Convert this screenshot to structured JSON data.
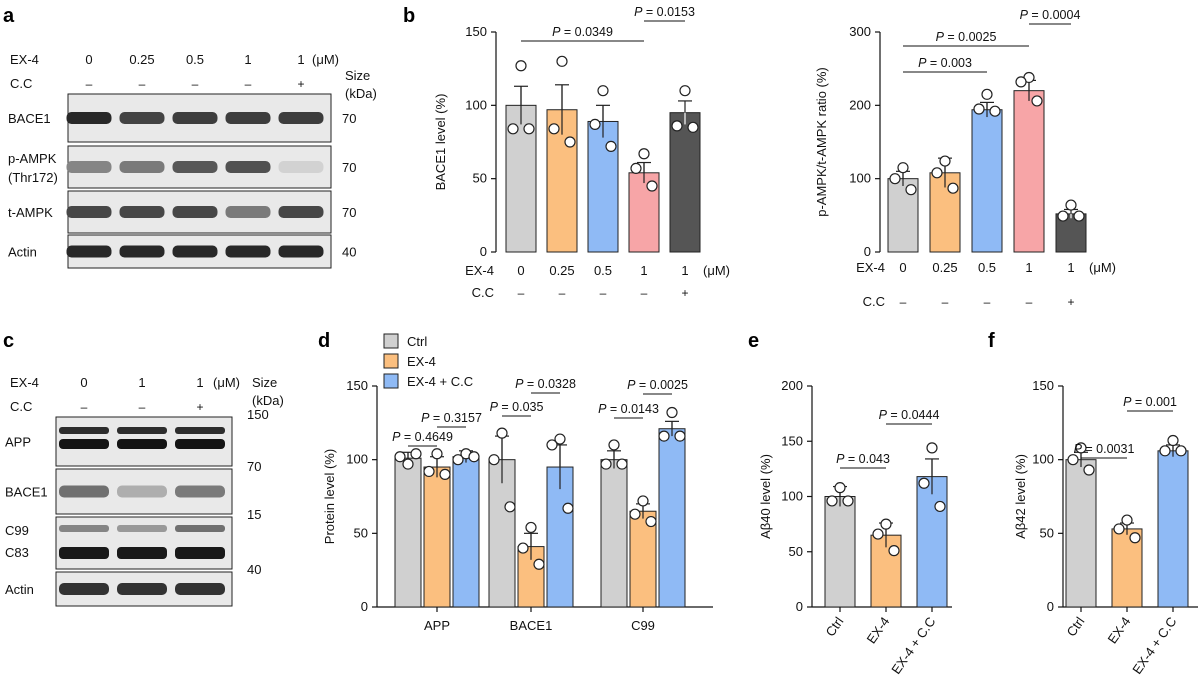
{
  "panels": {
    "a": {
      "label": "a",
      "treatment_labels": [
        "EX-4",
        "C.C"
      ],
      "ex4_values": [
        "0",
        "0.25",
        "0.5",
        "1",
        "1"
      ],
      "unit": "(μM)",
      "cc_values": [
        "–",
        "–",
        "–",
        "–",
        "+"
      ],
      "size_label": "Size",
      "size_unit": "(kDa)",
      "blots": [
        {
          "name": "BACE1",
          "name2": "",
          "kda": "70",
          "intensity": [
            0.95,
            0.82,
            0.85,
            0.85,
            0.85
          ]
        },
        {
          "name": "p-AMPK",
          "name2": "(Thr172)",
          "kda": "70",
          "intensity": [
            0.5,
            0.55,
            0.72,
            0.75,
            0.12
          ]
        },
        {
          "name": "t-AMPK",
          "name2": "",
          "kda": "70",
          "intensity": [
            0.8,
            0.8,
            0.8,
            0.55,
            0.8
          ]
        },
        {
          "name": "Actin",
          "name2": "",
          "kda": "40",
          "intensity": [
            0.95,
            0.95,
            0.95,
            0.95,
            0.95
          ]
        }
      ]
    },
    "b": {
      "label": "b"
    },
    "c": {
      "label": "c",
      "treatment_labels": [
        "EX-4",
        "C.C"
      ],
      "ex4_values": [
        "0",
        "1",
        "1"
      ],
      "unit": "(μM)",
      "cc_values": [
        "–",
        "–",
        "+"
      ],
      "size_label": "Size",
      "size_unit": "(kDa)",
      "blots": [
        {
          "name": "APP",
          "name2": "",
          "kda": "150",
          "intensity": [
            0.9,
            0.9,
            0.9
          ]
        },
        {
          "name": "BACE1",
          "name2": "",
          "kda": "70",
          "intensity": [
            0.6,
            0.3,
            0.55
          ]
        },
        {
          "name": "C99",
          "name2": "C83",
          "kda": "15",
          "intensity": [
            0.5,
            0.4,
            0.6
          ]
        },
        {
          "name": "Actin",
          "name2": "",
          "kda": "40",
          "intensity": [
            0.9,
            0.9,
            0.9
          ]
        }
      ]
    },
    "d": {
      "label": "d"
    },
    "e": {
      "label": "e"
    },
    "f": {
      "label": "f"
    }
  },
  "colors": {
    "gray": "#d0d0d0",
    "orange": "#fbbf7f",
    "blue": "#8fbaf5",
    "pink": "#f7a5a7",
    "dark": "#555555"
  },
  "chart_data": [
    {
      "id": "b1",
      "type": "bar",
      "ylabel": "BACE1 level (%)",
      "ylim": [
        0,
        150
      ],
      "yticks": [
        0,
        50,
        100,
        150
      ],
      "categories": [
        "0",
        "0.25",
        "0.5",
        "1",
        "1"
      ],
      "row_label": "EX-4",
      "unit": "(μM)",
      "cc_label": "C.C",
      "cc_values": [
        "–",
        "–",
        "–",
        "–",
        "+"
      ],
      "values": [
        100,
        97,
        89,
        54,
        95
      ],
      "errors": [
        13,
        17,
        11,
        7,
        8
      ],
      "points": [
        [
          127,
          84,
          84
        ],
        [
          130,
          84,
          75
        ],
        [
          110,
          87,
          72
        ],
        [
          67,
          57,
          45
        ],
        [
          110,
          86,
          85
        ]
      ],
      "color_keys": [
        "gray",
        "orange",
        "blue",
        "pink",
        "dark"
      ],
      "comparisons": [
        {
          "from": 0,
          "to": 3,
          "text": "0.0349",
          "level": 0
        },
        {
          "from": 3,
          "to": 4,
          "text": "0.0153",
          "level": 1
        }
      ]
    },
    {
      "id": "b2",
      "type": "bar",
      "ylabel": "p-AMPK/t-AMPK ratio (%)",
      "ylim": [
        0,
        300
      ],
      "yticks": [
        0,
        100,
        200,
        300
      ],
      "categories": [
        "0",
        "0.25",
        "0.5",
        "1",
        "1"
      ],
      "row_label": "EX-4",
      "unit": "(μM)",
      "cc_label": "C.C",
      "cc_values": [
        "–",
        "–",
        "–",
        "–",
        "+"
      ],
      "values": [
        100,
        108,
        194,
        220,
        52
      ],
      "errors": [
        10,
        20,
        10,
        14,
        6
      ],
      "points": [
        [
          115,
          100,
          85
        ],
        [
          124,
          108,
          87
        ],
        [
          215,
          195,
          192
        ],
        [
          238,
          232,
          206
        ],
        [
          64,
          49,
          49
        ]
      ],
      "color_keys": [
        "gray",
        "orange",
        "blue",
        "pink",
        "dark"
      ],
      "comparisons": [
        {
          "from": 0,
          "to": 2,
          "text": "0.003",
          "level": 0
        },
        {
          "from": 0,
          "to": 3,
          "text": "0.0025",
          "level": 1
        },
        {
          "from": 3,
          "to": 4,
          "text": "0.0004",
          "level": 2
        }
      ]
    },
    {
      "id": "d",
      "type": "bar",
      "ylabel": "Protein level (%)",
      "ylim": [
        0,
        150
      ],
      "yticks": [
        0,
        50,
        100,
        150
      ],
      "categories": [
        "APP",
        "BACE1",
        "C99"
      ],
      "series": [
        {
          "name": "Ctrl",
          "color_key": "gray",
          "values": [
            101,
            100,
            100
          ],
          "errors": [
            4,
            16,
            6
          ],
          "points": [
            [
              97,
              102,
              104
            ],
            [
              118,
              100,
              68
            ],
            [
              110,
              97,
              97
            ]
          ]
        },
        {
          "name": "EX-4",
          "color_key": "orange",
          "values": [
            95,
            41,
            65
          ],
          "errors": [
            7,
            9,
            5
          ],
          "points": [
            [
              104,
              92,
              90
            ],
            [
              54,
              40,
              29
            ],
            [
              72,
              63,
              58
            ]
          ]
        },
        {
          "name": "EX-4 + C.C",
          "color_key": "blue",
          "values": [
            102,
            95,
            121
          ],
          "errors": [
            4,
            15,
            5
          ],
          "points": [
            [
              104,
              100,
              102
            ],
            [
              114,
              110,
              67
            ],
            [
              132,
              116,
              116
            ]
          ]
        }
      ],
      "comparisons": [
        {
          "cat": 0,
          "from": 0,
          "to": 1,
          "text": "0.4649",
          "level": 0
        },
        {
          "cat": 0,
          "from": 1,
          "to": 2,
          "text": "0.3157",
          "level": 1
        },
        {
          "cat": 1,
          "from": 0,
          "to": 1,
          "text": "0.035",
          "level": 0
        },
        {
          "cat": 1,
          "from": 1,
          "to": 2,
          "text": "0.0328",
          "level": 1
        },
        {
          "cat": 2,
          "from": 0,
          "to": 1,
          "text": "0.0143",
          "level": 0
        },
        {
          "cat": 2,
          "from": 1,
          "to": 2,
          "text": "0.0025",
          "level": 1
        }
      ]
    },
    {
      "id": "e",
      "type": "bar",
      "ylabel": "Aβ40 level (%)",
      "ylim": [
        0,
        200
      ],
      "yticks": [
        0,
        50,
        100,
        150,
        200
      ],
      "categories": [
        "Ctrl",
        "EX-4",
        "EX-4 + C.C"
      ],
      "values": [
        100,
        65,
        118
      ],
      "errors": [
        9,
        11,
        16
      ],
      "points": [
        [
          108,
          96,
          96
        ],
        [
          75,
          66,
          51
        ],
        [
          144,
          112,
          91
        ]
      ],
      "color_keys": [
        "gray",
        "orange",
        "blue"
      ],
      "comparisons": [
        {
          "from": 0,
          "to": 1,
          "text": "0.043",
          "level": 0
        },
        {
          "from": 1,
          "to": 2,
          "text": "0.0444",
          "level": 1
        }
      ]
    },
    {
      "id": "f",
      "type": "bar",
      "ylabel": "Aβ42 level (%)",
      "ylim": [
        0,
        150
      ],
      "yticks": [
        0,
        50,
        100,
        150
      ],
      "categories": [
        "Ctrl",
        "EX-4",
        "EX-4 + C.C"
      ],
      "values": [
        100,
        53,
        106
      ],
      "errors": [
        5,
        4,
        4
      ],
      "points": [
        [
          108,
          100,
          93
        ],
        [
          59,
          53,
          47
        ],
        [
          113,
          106,
          106
        ]
      ],
      "color_keys": [
        "gray",
        "orange",
        "blue"
      ],
      "comparisons": [
        {
          "from": 0,
          "to": 1,
          "text": "0.0031",
          "level": 0
        },
        {
          "from": 1,
          "to": 2,
          "text": "0.001",
          "level": 1
        }
      ]
    }
  ]
}
